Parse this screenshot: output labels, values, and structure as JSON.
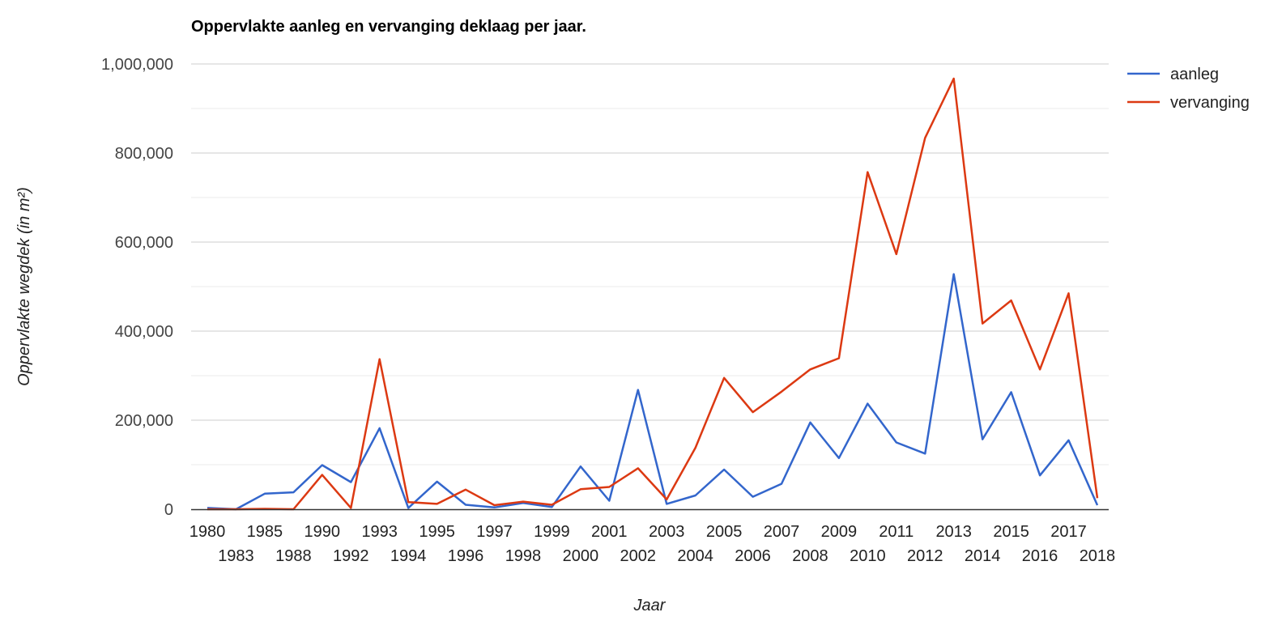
{
  "chart_data": {
    "type": "line",
    "title": "Oppervlakte aanleg en vervanging deklaag per jaar.",
    "xlabel": "Jaar",
    "ylabel": "Oppervlakte wegdek (in m²)",
    "ylim": [
      0,
      1000000
    ],
    "yticks": [
      0,
      200000,
      400000,
      600000,
      800000,
      1000000
    ],
    "ytick_labels": [
      "0",
      "200,000",
      "400,000",
      "600,000",
      "800,000",
      "1,000,000"
    ],
    "grid": true,
    "legend_position": "right",
    "categories": [
      "1980",
      "1983",
      "1985",
      "1988",
      "1990",
      "1992",
      "1993",
      "1994",
      "1995",
      "1996",
      "1997",
      "1998",
      "1999",
      "2000",
      "2001",
      "2002",
      "2003",
      "2004",
      "2005",
      "2006",
      "2007",
      "2008",
      "2009",
      "2010",
      "2011",
      "2012",
      "2013",
      "2014",
      "2015",
      "2016",
      "2017",
      "2018"
    ],
    "series": [
      {
        "name": "aanleg",
        "color": "#3366cc",
        "values": [
          3000,
          0,
          35000,
          38000,
          99000,
          61000,
          182000,
          3000,
          62000,
          10000,
          4000,
          14000,
          5000,
          96000,
          19000,
          268000,
          12000,
          31000,
          89000,
          28000,
          57000,
          195000,
          115000,
          237000,
          150000,
          125000,
          528000,
          157000,
          263000,
          76000,
          155000,
          9000
        ]
      },
      {
        "name": "vervanging",
        "color": "#dc3912",
        "values": [
          0,
          0,
          1000,
          0,
          77000,
          3000,
          337000,
          16000,
          12000,
          44000,
          9000,
          17000,
          10000,
          45000,
          50000,
          92000,
          22000,
          138000,
          295000,
          218000,
          264000,
          314000,
          339000,
          757000,
          573000,
          834000,
          967000,
          417000,
          469000,
          314000,
          485000,
          25000
        ]
      }
    ]
  }
}
